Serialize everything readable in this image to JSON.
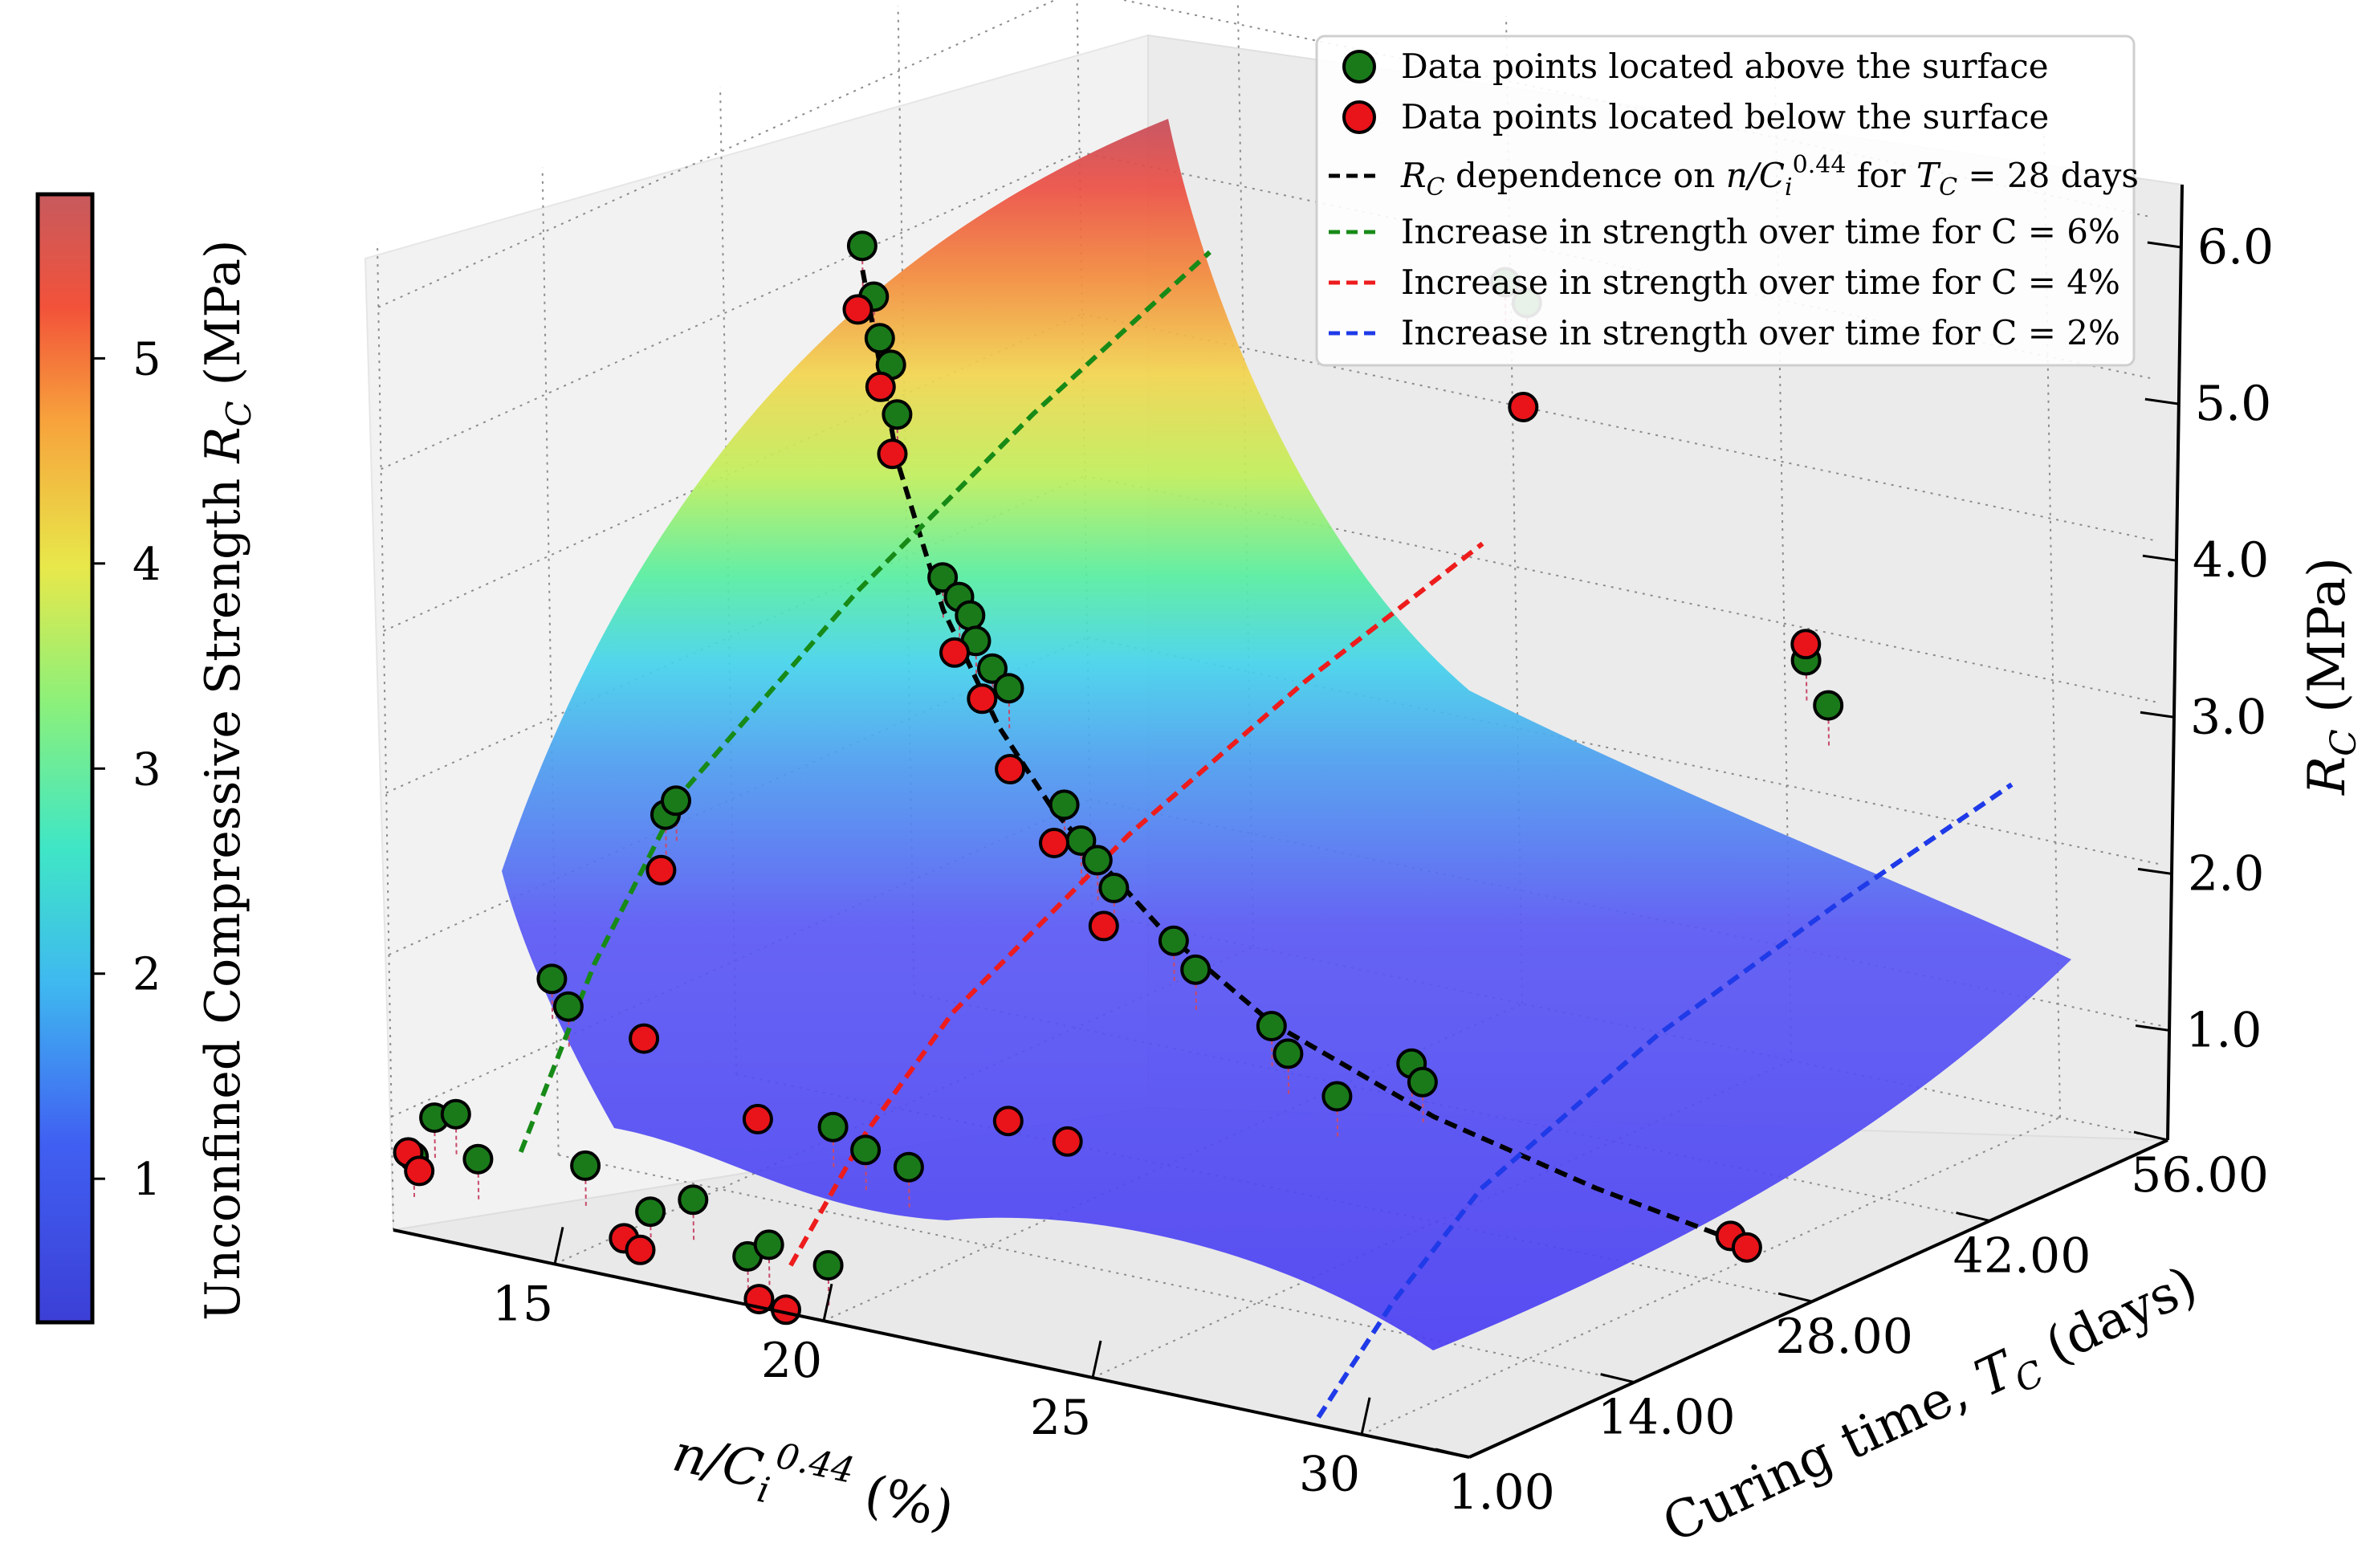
{
  "chart_data": {
    "type": "scatter",
    "subtype": "3d-surface-with-scatter",
    "xlabel": "n/Ci^0.44 (%)",
    "xlabel_parts": [
      "n/C",
      "i",
      "0.44",
      " (%)"
    ],
    "ylabel": "Curing time, TC (days)",
    "ylabel_parts": [
      "Curing time, ",
      "T",
      "C",
      " (days)"
    ],
    "zlabel": "RC (MPa)",
    "zlabel_parts": [
      "R",
      "C",
      " (MPa)"
    ],
    "x_ticks": [
      "15",
      "20",
      "25",
      "30"
    ],
    "x_tick_values": [
      15,
      20,
      25,
      30
    ],
    "x_range": [
      12,
      32
    ],
    "y_ticks": [
      "1.00",
      "14.00",
      "28.00",
      "42.00",
      "56.00"
    ],
    "y_tick_values": [
      1,
      14,
      28,
      42,
      56
    ],
    "y_range": [
      1,
      56
    ],
    "z_ticks": [
      "1.0",
      "2.0",
      "3.0",
      "4.0",
      "5.0",
      "6.0"
    ],
    "z_tick_values": [
      1,
      2,
      3,
      4,
      5,
      6
    ],
    "z_range": [
      0.3,
      6.4
    ],
    "colorbar": {
      "label": "Unconfined Compressive Strength RC (MPa)",
      "label_parts": [
        "Unconfined Compressive Strength ",
        "R",
        "C",
        " (MPa)"
      ],
      "ticks": [
        "1",
        "2",
        "3",
        "4",
        "5"
      ],
      "tick_values": [
        1,
        2,
        3,
        4,
        5
      ],
      "range": [
        0.3,
        5.8
      ],
      "colormap": "rainbow"
    },
    "legend": {
      "position": "top-right",
      "entries": [
        {
          "kind": "marker",
          "color": "#1a7a1a",
          "text": "Data points located above the surface"
        },
        {
          "kind": "marker",
          "color": "#e8141a",
          "text": "Data points located below the surface"
        },
        {
          "kind": "line",
          "color": "#000000",
          "text_parts": [
            "R",
            "C",
            " dependence on ",
            "n/C",
            "i",
            "0.44",
            " for ",
            "T",
            "C",
            " = 28 days"
          ],
          "text": "RC dependence on n/Ci^0.44 for TC = 28 days"
        },
        {
          "kind": "line",
          "color": "#178a17",
          "text": "Increase in strength over time for C = 6%"
        },
        {
          "kind": "line",
          "color": "#ee1c1c",
          "text": "Increase in strength over time for C = 4%"
        },
        {
          "kind": "line",
          "color": "#1f3ae8",
          "text": "Increase in strength over time for C = 2%"
        }
      ]
    },
    "curves": [
      {
        "name": "RC dependence on n/Ci^0.44 for TC = 28 days",
        "color": "#000000",
        "points": [
          [
            14.6,
            28,
            5.45
          ],
          [
            15.2,
            28,
            4.3
          ],
          [
            16,
            28,
            3.45
          ],
          [
            17,
            28,
            2.8
          ],
          [
            18,
            28,
            2.35
          ],
          [
            20,
            28,
            1.75
          ],
          [
            22,
            28,
            1.32
          ],
          [
            25,
            28,
            0.95
          ],
          [
            28,
            28,
            0.72
          ],
          [
            30.5,
            28,
            0.58
          ]
        ]
      },
      {
        "name": "Increase in strength over time for C = 6%",
        "color": "#178a17",
        "points": [
          [
            14.4,
            1,
            0.95
          ],
          [
            14.4,
            7,
            1.9
          ],
          [
            14.4,
            14,
            2.7
          ],
          [
            14.4,
            28,
            3.45
          ],
          [
            14.4,
            42,
            4.05
          ],
          [
            14.4,
            56,
            4.55
          ]
        ]
      },
      {
        "name": "Increase in strength over time for C = 4%",
        "color": "#ee1c1c",
        "points": [
          [
            19.4,
            1,
            0.6
          ],
          [
            19.4,
            7,
            1.2
          ],
          [
            19.4,
            14,
            1.7
          ],
          [
            19.4,
            28,
            2.3
          ],
          [
            19.4,
            42,
            2.75
          ],
          [
            19.4,
            56,
            3.1
          ]
        ]
      },
      {
        "name": "Increase in strength over time for C = 2%",
        "color": "#1f3ae8",
        "points": [
          [
            29.2,
            1,
            0.35
          ],
          [
            29.2,
            7,
            0.85
          ],
          [
            29.2,
            14,
            1.3
          ],
          [
            29.2,
            28,
            1.75
          ],
          [
            29.2,
            42,
            2.05
          ],
          [
            29.2,
            56,
            2.3
          ]
        ]
      }
    ],
    "points_above": [
      [
        14.6,
        28,
        5.6
      ],
      [
        14.8,
        28,
        5.3
      ],
      [
        14.9,
        28,
        5.05
      ],
      [
        15.1,
        28,
        4.9
      ],
      [
        15.2,
        28,
        4.6
      ],
      [
        16,
        28,
        3.65
      ],
      [
        16.3,
        28,
        3.55
      ],
      [
        16.5,
        28,
        3.45
      ],
      [
        16.6,
        28,
        3.3
      ],
      [
        16.9,
        28,
        3.15
      ],
      [
        17.2,
        28,
        3.05
      ],
      [
        18.2,
        28,
        2.4
      ],
      [
        18.5,
        28,
        2.2
      ],
      [
        18.8,
        28,
        2.1
      ],
      [
        19.1,
        28,
        1.95
      ],
      [
        20.2,
        28,
        1.7
      ],
      [
        20.6,
        28,
        1.55
      ],
      [
        22,
        28,
        1.3
      ],
      [
        22.3,
        28,
        1.15
      ],
      [
        23.2,
        28,
        0.95
      ],
      [
        12.8,
        1,
        1.05
      ],
      [
        13.2,
        1,
        1.1
      ],
      [
        13.6,
        1,
        0.85
      ],
      [
        12.4,
        1,
        0.78
      ],
      [
        13.9,
        7,
        1.6
      ],
      [
        13.6,
        7,
        1.75
      ],
      [
        14.1,
        14,
        2.55
      ],
      [
        14.3,
        14,
        2.65
      ],
      [
        16.8,
        1,
        0.75
      ],
      [
        17.6,
        1,
        0.88
      ],
      [
        15.6,
        1,
        0.95
      ],
      [
        18.8,
        7,
        1.2
      ],
      [
        19.4,
        7,
        1.1
      ],
      [
        20.2,
        7,
        1.05
      ],
      [
        18.6,
        1,
        0.6
      ],
      [
        19.0,
        1,
        0.7
      ],
      [
        20.1,
        1,
        0.65
      ],
      [
        19.9,
        56,
        4.75
      ],
      [
        20.3,
        56,
        4.65
      ],
      [
        25.4,
        56,
        2.8
      ],
      [
        25.8,
        56,
        2.55
      ],
      [
        24.6,
        28,
        1.25
      ],
      [
        24.8,
        28,
        1.15
      ]
    ],
    "points_below": [
      [
        14.5,
        28,
        5.2
      ],
      [
        14.9,
        28,
        4.75
      ],
      [
        15.1,
        28,
        4.35
      ],
      [
        16.2,
        28,
        3.2
      ],
      [
        16.7,
        28,
        2.95
      ],
      [
        17.2,
        28,
        2.55
      ],
      [
        18.0,
        28,
        2.15
      ],
      [
        18.9,
        28,
        1.7
      ],
      [
        12.3,
        1,
        0.8
      ],
      [
        12.5,
        1,
        0.7
      ],
      [
        16.3,
        1,
        0.55
      ],
      [
        16.6,
        1,
        0.5
      ],
      [
        18.8,
        1,
        0.35
      ],
      [
        19.3,
        1,
        0.32
      ],
      [
        30.5,
        28,
        0.6
      ],
      [
        30.8,
        28,
        0.55
      ],
      [
        20.2,
        56,
        4.0
      ],
      [
        25.4,
        56,
        2.9
      ],
      [
        14.0,
        14,
        2.2
      ],
      [
        15.3,
        7,
        1.5
      ],
      [
        17.4,
        7,
        1.15
      ],
      [
        20.4,
        14,
        1.1
      ],
      [
        21.5,
        14,
        1.05
      ]
    ]
  }
}
